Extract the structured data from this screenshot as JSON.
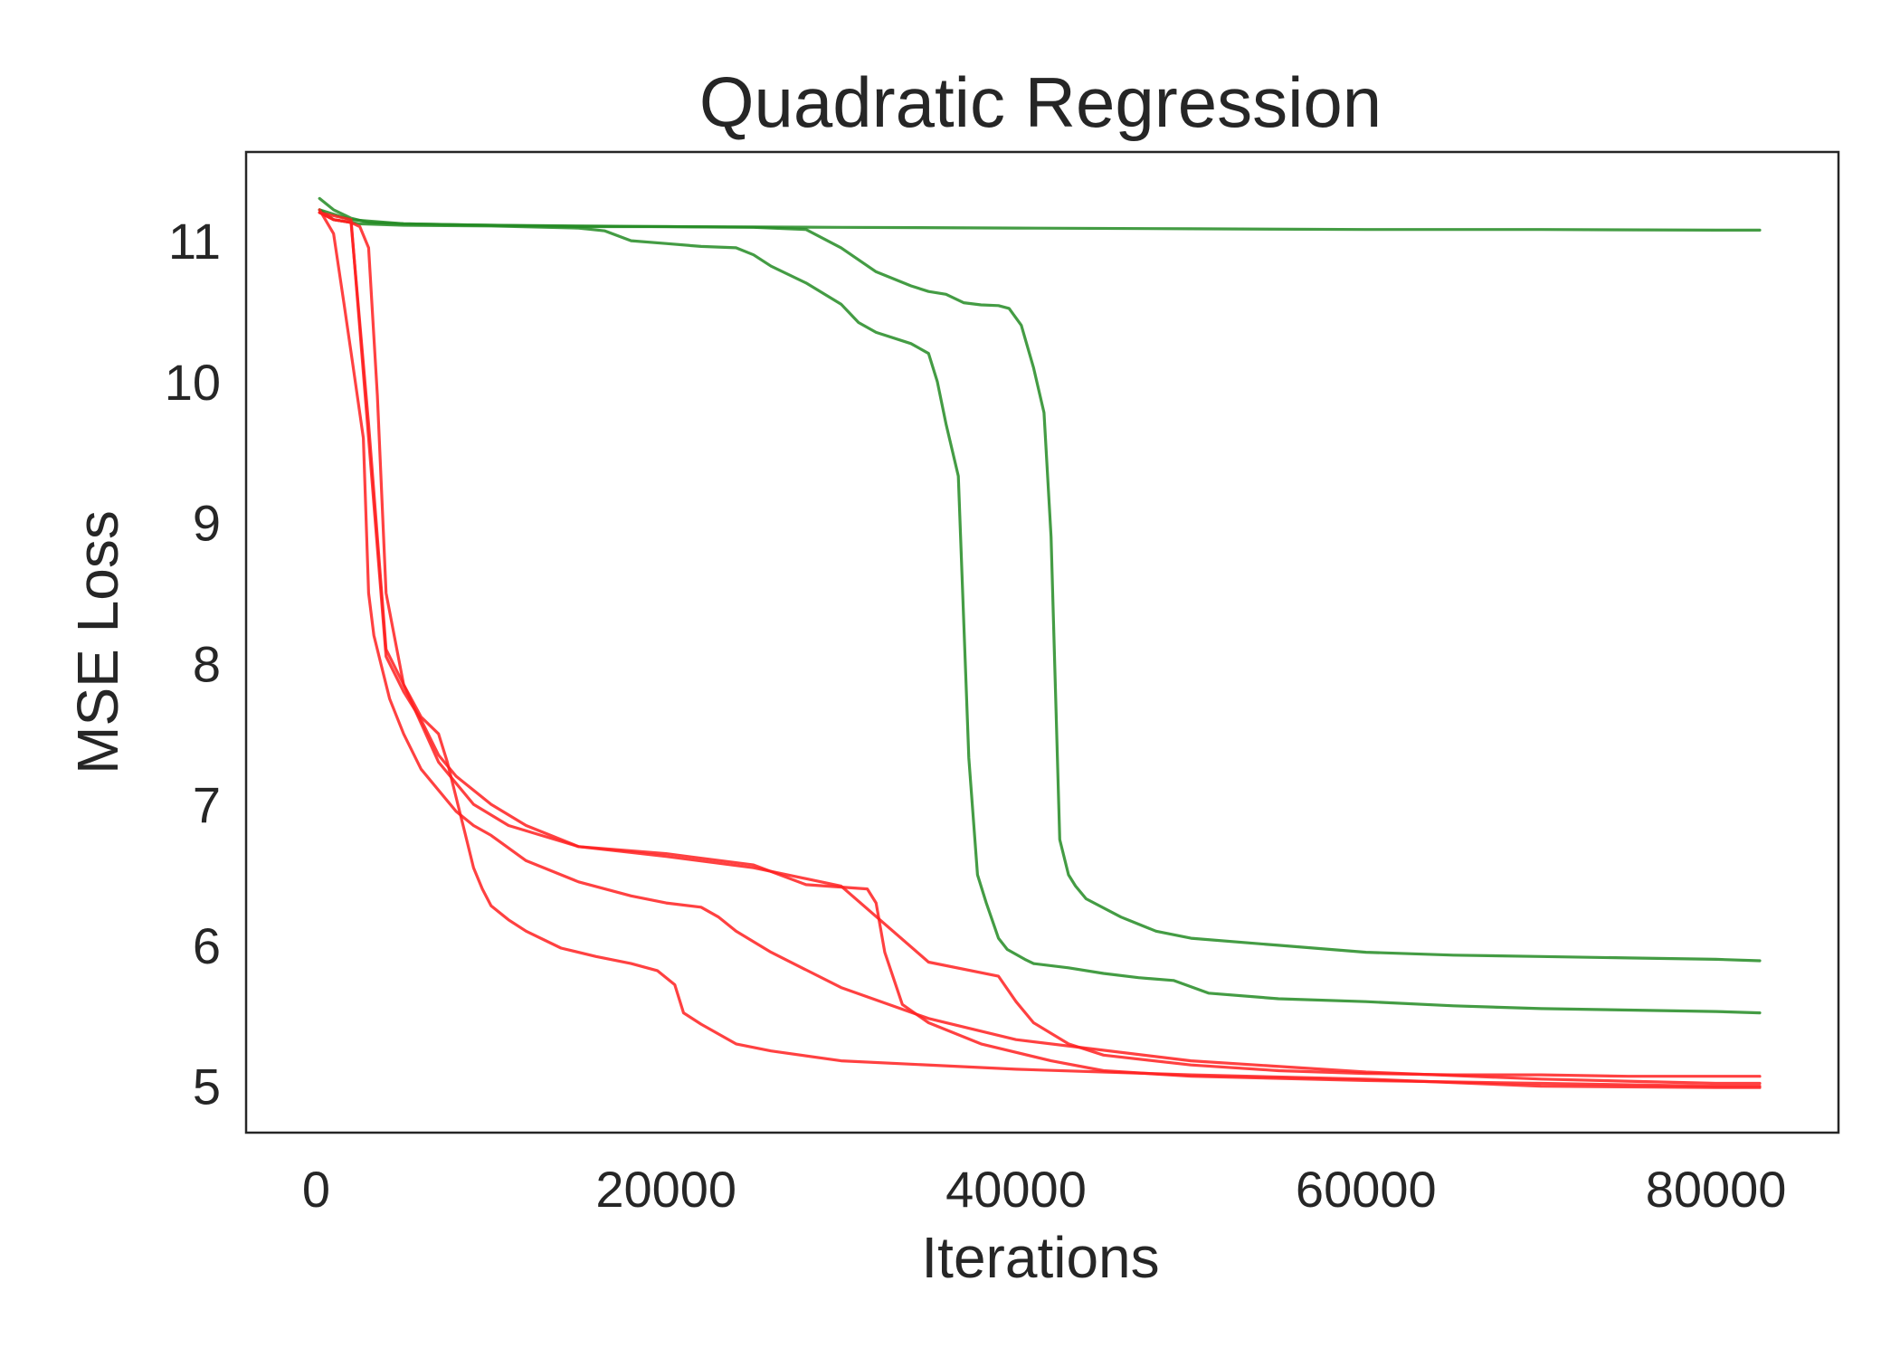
{
  "chart_data": {
    "type": "line",
    "title": "Quadratic Regression",
    "xlabel": "Iterations",
    "ylabel": "MSE Loss",
    "xlim": [
      -4000,
      87000
    ],
    "ylim": [
      4.67,
      11.63
    ],
    "xticks": [
      0,
      20000,
      40000,
      60000,
      80000
    ],
    "yticks": [
      5,
      6,
      7,
      8,
      9,
      10,
      11
    ],
    "grid": false,
    "legend": "none",
    "series_colors": {
      "green": "#238b23",
      "red": "#ff2020"
    },
    "series": [
      {
        "color": "green",
        "x": [
          200,
          1000,
          2000,
          3000,
          5000,
          10000,
          20000,
          30000,
          40000,
          50000,
          60000,
          70000,
          80000,
          82500
        ],
        "y": [
          11.3,
          11.22,
          11.16,
          11.13,
          11.12,
          11.11,
          11.1,
          11.095,
          11.09,
          11.085,
          11.08,
          11.08,
          11.075,
          11.075
        ]
      },
      {
        "color": "green",
        "x": [
          200,
          1000,
          2500,
          5000,
          10000,
          15000,
          16500,
          18000,
          20000,
          22000,
          24000,
          25000,
          26000,
          28000,
          30000,
          31000,
          32000,
          34000,
          35000,
          35500,
          36000,
          36700,
          37300,
          37800,
          38300,
          39000,
          39500,
          40500,
          41000,
          43000,
          45000,
          47000,
          49000,
          51000,
          55000,
          60000,
          65000,
          70000,
          75000,
          80000,
          82500
        ],
        "y": [
          11.22,
          11.15,
          11.12,
          11.11,
          11.105,
          11.09,
          11.07,
          11.0,
          10.98,
          10.96,
          10.95,
          10.9,
          10.82,
          10.7,
          10.55,
          10.42,
          10.35,
          10.27,
          10.2,
          10.0,
          9.7,
          9.33,
          7.33,
          6.5,
          6.3,
          6.05,
          5.97,
          5.9,
          5.87,
          5.84,
          5.8,
          5.77,
          5.75,
          5.66,
          5.62,
          5.6,
          5.57,
          5.55,
          5.54,
          5.53,
          5.52
        ]
      },
      {
        "color": "green",
        "x": [
          200,
          2000,
          5000,
          10000,
          15000,
          20000,
          25000,
          28000,
          30000,
          32000,
          34000,
          35000,
          36000,
          37000,
          38000,
          39000,
          39600,
          40300,
          41000,
          41600,
          42000,
          42500,
          43000,
          43400,
          44000,
          46000,
          48000,
          50000,
          55000,
          60000,
          65000,
          70000,
          75000,
          80000,
          82500
        ],
        "y": [
          11.22,
          11.15,
          11.12,
          11.11,
          11.1,
          11.1,
          11.095,
          11.08,
          10.95,
          10.78,
          10.68,
          10.64,
          10.62,
          10.56,
          10.545,
          10.54,
          10.52,
          10.4,
          10.1,
          9.78,
          8.9,
          6.75,
          6.5,
          6.42,
          6.33,
          6.2,
          6.1,
          6.05,
          6.0,
          5.95,
          5.93,
          5.92,
          5.91,
          5.9,
          5.89
        ]
      },
      {
        "color": "red",
        "x": [
          200,
          1000,
          1600,
          2100,
          2700,
          3000,
          3300,
          3700,
          4200,
          5000,
          6000,
          7000,
          8000,
          9000,
          10000,
          12000,
          15000,
          18000,
          20000,
          22000,
          23000,
          24000,
          26000,
          30000,
          35000,
          40000,
          50000,
          60000,
          70000,
          80000,
          82500
        ],
        "y": [
          11.22,
          11.05,
          10.55,
          10.12,
          9.6,
          8.5,
          8.2,
          8.0,
          7.75,
          7.5,
          7.25,
          7.1,
          6.95,
          6.85,
          6.78,
          6.6,
          6.45,
          6.35,
          6.3,
          6.27,
          6.2,
          6.1,
          5.95,
          5.7,
          5.48,
          5.33,
          5.18,
          5.1,
          5.05,
          5.02,
          5.02
        ]
      },
      {
        "color": "red",
        "x": [
          200,
          1000,
          2000,
          2500,
          3000,
          3500,
          4000,
          5000,
          7000,
          9000,
          11000,
          15000,
          20000,
          25000,
          28000,
          31500,
          32000,
          32500,
          33500,
          35000,
          38000,
          42000,
          45000,
          50000,
          60000,
          70000,
          80000,
          82500
        ],
        "y": [
          11.2,
          11.15,
          11.13,
          11.1,
          10.95,
          9.9,
          8.5,
          7.85,
          7.3,
          7.0,
          6.85,
          6.7,
          6.65,
          6.57,
          6.43,
          6.4,
          6.3,
          5.95,
          5.58,
          5.45,
          5.3,
          5.18,
          5.11,
          5.07,
          5.04,
          5.02,
          5.0,
          5.0
        ]
      },
      {
        "color": "red",
        "x": [
          200,
          1000,
          2000,
          3000,
          4000,
          5000,
          6000,
          7000,
          7500,
          8000,
          8500,
          9000,
          9500,
          10000,
          11000,
          12000,
          14000,
          16000,
          18000,
          19500,
          20500,
          21000,
          22000,
          24000,
          26000,
          30000,
          40000,
          50000,
          60000,
          70000,
          80000,
          82500
        ],
        "y": [
          11.2,
          11.15,
          11.13,
          9.7,
          8.1,
          7.85,
          7.62,
          7.5,
          7.3,
          7.05,
          6.8,
          6.55,
          6.4,
          6.28,
          6.18,
          6.1,
          5.98,
          5.92,
          5.87,
          5.82,
          5.72,
          5.52,
          5.44,
          5.3,
          5.25,
          5.18,
          5.12,
          5.08,
          5.05,
          5.0,
          4.99,
          4.99
        ]
      },
      {
        "color": "red",
        "x": [
          200,
          2000,
          3000,
          4000,
          5000,
          6000,
          7000,
          8000,
          9000,
          10000,
          12000,
          15000,
          20000,
          25000,
          30000,
          35000,
          39000,
          40000,
          41000,
          43000,
          45000,
          50000,
          55000,
          60000,
          65000,
          70000,
          75000,
          80000,
          82500
        ],
        "y": [
          11.2,
          11.15,
          9.6,
          8.05,
          7.8,
          7.6,
          7.35,
          7.2,
          7.1,
          7.0,
          6.85,
          6.7,
          6.63,
          6.55,
          6.42,
          5.88,
          5.78,
          5.6,
          5.45,
          5.3,
          5.22,
          5.15,
          5.11,
          5.09,
          5.08,
          5.08,
          5.07,
          5.07,
          5.07
        ]
      }
    ]
  }
}
